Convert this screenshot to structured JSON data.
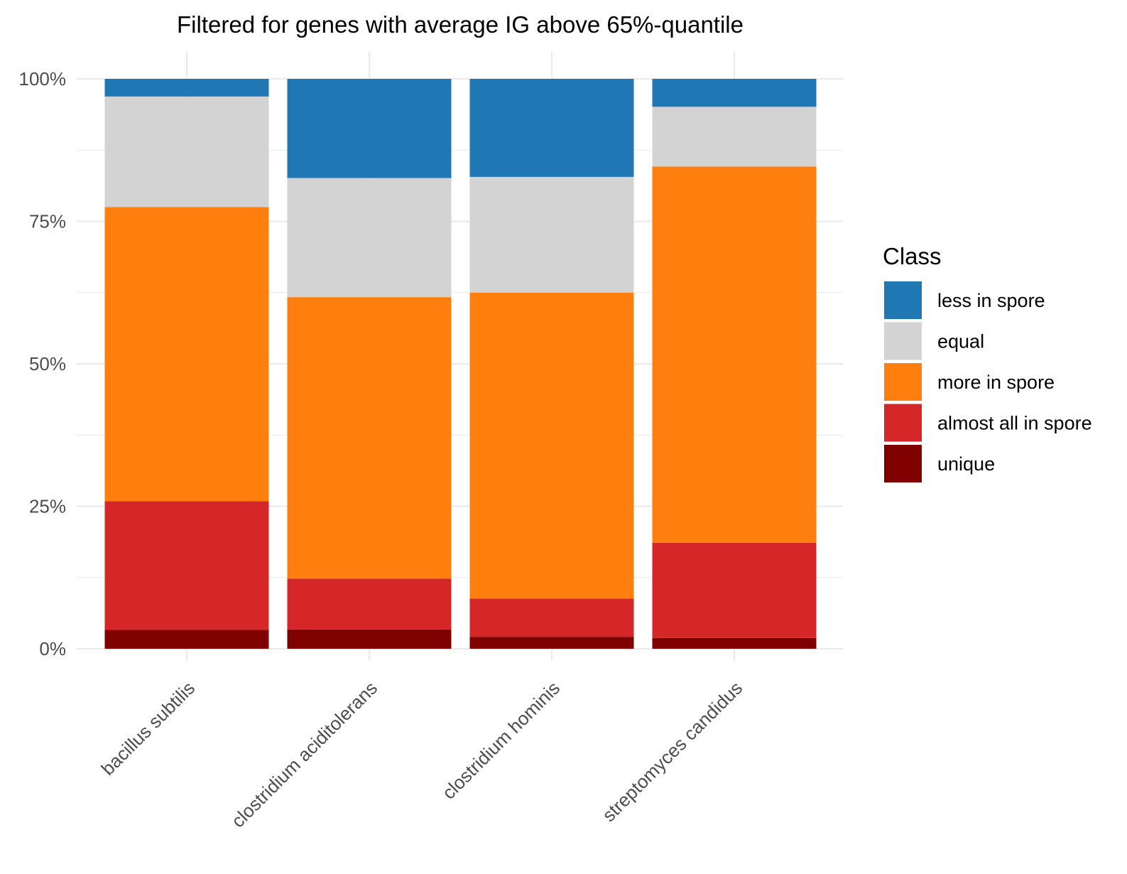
{
  "chart_data": {
    "type": "bar",
    "stacked": true,
    "normalized": true,
    "title": "Filtered for genes with average IG above 65%-quantile",
    "xlabel": "",
    "ylabel": "",
    "categories": [
      "bacillus subtilis",
      "clostridium aciditolerans",
      "clostridium hominis",
      "streptomyces candidus"
    ],
    "ylim": [
      0,
      1
    ],
    "y_ticks": [
      {
        "value": 0,
        "label": "0%"
      },
      {
        "value": 0.25,
        "label": "25%"
      },
      {
        "value": 0.5,
        "label": "50%"
      },
      {
        "value": 0.75,
        "label": "75%"
      },
      {
        "value": 1,
        "label": "100%"
      }
    ],
    "grid": true,
    "legend": {
      "title": "Class",
      "position": "right"
    },
    "series": [
      {
        "name": "unique",
        "color": "#800000",
        "values": [
          0.033,
          0.034,
          0.021,
          0.019
        ]
      },
      {
        "name": "almost all in spore",
        "color": "#D62728",
        "values": [
          0.226,
          0.089,
          0.067,
          0.167
        ]
      },
      {
        "name": "more in spore",
        "color": "#FF7F0E",
        "values": [
          0.516,
          0.494,
          0.537,
          0.66
        ]
      },
      {
        "name": "equal",
        "color": "#D3D3D3",
        "values": [
          0.194,
          0.209,
          0.203,
          0.105
        ]
      },
      {
        "name": "less in spore",
        "color": "#1F77B4",
        "values": [
          0.031,
          0.174,
          0.172,
          0.049
        ]
      }
    ],
    "legend_order": [
      "less in spore",
      "equal",
      "more in spore",
      "almost all in spore",
      "unique"
    ]
  }
}
